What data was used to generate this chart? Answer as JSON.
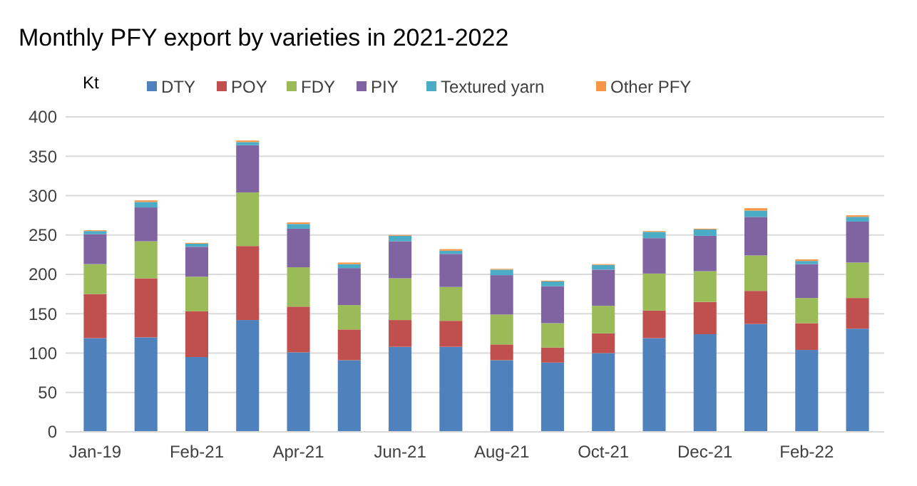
{
  "chart_data": {
    "type": "bar",
    "title": "Monthly PFY export by varieties in 2021-2022",
    "ylabel": "Kt",
    "stacked": true,
    "grid": "y",
    "legend": "top",
    "categories": [
      "Jan-19",
      null,
      "Feb-21",
      null,
      "Apr-21",
      null,
      "Jun-21",
      null,
      "Aug-21",
      null,
      "Oct-21",
      null,
      "Dec-21",
      null,
      "Feb-22",
      null
    ],
    "ylim": [
      0,
      400
    ],
    "yticks": [
      0,
      50,
      100,
      150,
      200,
      250,
      300,
      350,
      400
    ],
    "series": [
      {
        "name": "DTY",
        "color": "#4f81bd",
        "values": [
          119,
          120,
          95,
          142,
          101,
          91,
          108,
          108,
          91,
          88,
          100,
          119,
          124,
          137,
          104,
          131
        ]
      },
      {
        "name": "POY",
        "color": "#c0504d",
        "values": [
          56,
          75,
          58,
          94,
          58,
          39,
          34,
          33,
          20,
          19,
          25,
          35,
          41,
          42,
          34,
          39
        ]
      },
      {
        "name": "FDY",
        "color": "#9bbb59",
        "values": [
          38,
          47,
          44,
          68,
          50,
          31,
          53,
          43,
          38,
          31,
          35,
          47,
          39,
          45,
          32,
          45
        ]
      },
      {
        "name": "PIY",
        "color": "#8064a2",
        "values": [
          38,
          43,
          38,
          60,
          49,
          47,
          47,
          42,
          50,
          47,
          46,
          45,
          45,
          49,
          43,
          52
        ]
      },
      {
        "name": "Textured yarn",
        "color": "#4bacc6",
        "values": [
          4,
          7,
          4,
          4,
          6,
          5,
          7,
          4,
          7,
          6,
          6,
          8,
          8,
          8,
          4,
          6
        ]
      },
      {
        "name": "Other PFY",
        "color": "#f79646",
        "values": [
          1,
          2,
          1,
          2,
          2,
          2,
          1,
          2,
          1,
          1,
          1,
          1,
          1,
          3,
          2,
          2
        ]
      }
    ]
  }
}
